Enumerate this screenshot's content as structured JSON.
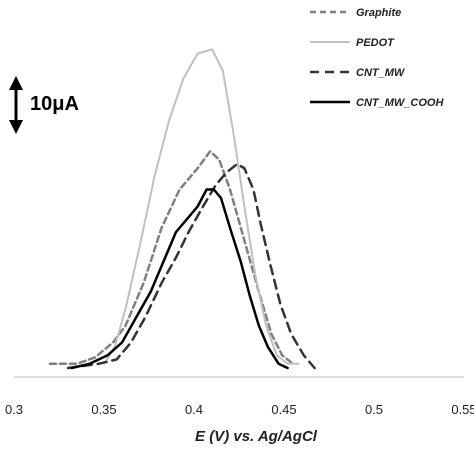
{
  "chart_data": {
    "type": "line",
    "title": "",
    "xlabel": "E (V) vs. Ag/AgCl",
    "ylabel": "",
    "xlim": [
      0.3,
      0.55
    ],
    "ylim": [
      0,
      80
    ],
    "x_ticks": [
      "0.3",
      "0.35",
      "0.4",
      "0.45",
      "0.5",
      "0.55"
    ],
    "y_axis_visible": false,
    "grid": false,
    "legend_position": "top-right",
    "scale_bar": {
      "label": "10μA",
      "value": 10
    },
    "series": [
      {
        "name": "Graphite",
        "color": "#808080",
        "style": "dashed",
        "points": [
          [
            0.32,
            1
          ],
          [
            0.335,
            1
          ],
          [
            0.345,
            2.5
          ],
          [
            0.355,
            6
          ],
          [
            0.362,
            10
          ],
          [
            0.372,
            20
          ],
          [
            0.382,
            33
          ],
          [
            0.392,
            42
          ],
          [
            0.402,
            47
          ],
          [
            0.409,
            51
          ],
          [
            0.414,
            49
          ],
          [
            0.42,
            42
          ],
          [
            0.428,
            30
          ],
          [
            0.436,
            18
          ],
          [
            0.443,
            8
          ],
          [
            0.449,
            3
          ],
          [
            0.455,
            1
          ]
        ]
      },
      {
        "name": "PEDOT",
        "color": "#c0c0c0",
        "style": "solid",
        "points": [
          [
            0.35,
            1
          ],
          [
            0.356,
            5
          ],
          [
            0.362,
            14
          ],
          [
            0.37,
            29
          ],
          [
            0.378,
            45
          ],
          [
            0.386,
            58
          ],
          [
            0.394,
            68
          ],
          [
            0.402,
            74
          ],
          [
            0.41,
            75
          ],
          [
            0.416,
            70
          ],
          [
            0.422,
            55
          ],
          [
            0.428,
            38
          ],
          [
            0.434,
            22
          ],
          [
            0.44,
            10
          ],
          [
            0.446,
            3
          ],
          [
            0.452,
            1
          ],
          [
            0.458,
            1
          ]
        ]
      },
      {
        "name": "CNT_MW",
        "color": "#333333",
        "style": "dashed",
        "points": [
          [
            0.33,
            0
          ],
          [
            0.347,
            1
          ],
          [
            0.357,
            2
          ],
          [
            0.365,
            6
          ],
          [
            0.373,
            12
          ],
          [
            0.382,
            20
          ],
          [
            0.39,
            26
          ],
          [
            0.397,
            32
          ],
          [
            0.405,
            38
          ],
          [
            0.412,
            43
          ],
          [
            0.418,
            46
          ],
          [
            0.424,
            48
          ],
          [
            0.428,
            47
          ],
          [
            0.433,
            42
          ],
          [
            0.437,
            34
          ],
          [
            0.442,
            25
          ],
          [
            0.448,
            15
          ],
          [
            0.454,
            8
          ],
          [
            0.461,
            3
          ],
          [
            0.467,
            0
          ]
        ]
      },
      {
        "name": "CNT_MW_COOH",
        "color": "#000000",
        "style": "solid",
        "points": [
          [
            0.332,
            0
          ],
          [
            0.342,
            1
          ],
          [
            0.352,
            3
          ],
          [
            0.36,
            6
          ],
          [
            0.368,
            12
          ],
          [
            0.376,
            18
          ],
          [
            0.384,
            26
          ],
          [
            0.39,
            32
          ],
          [
            0.396,
            35
          ],
          [
            0.402,
            38
          ],
          [
            0.407,
            42
          ],
          [
            0.411,
            42
          ],
          [
            0.415,
            40
          ],
          [
            0.42,
            33
          ],
          [
            0.426,
            25
          ],
          [
            0.431,
            17
          ],
          [
            0.436,
            10
          ],
          [
            0.441,
            5
          ],
          [
            0.447,
            1
          ],
          [
            0.452,
            0
          ]
        ]
      }
    ]
  }
}
